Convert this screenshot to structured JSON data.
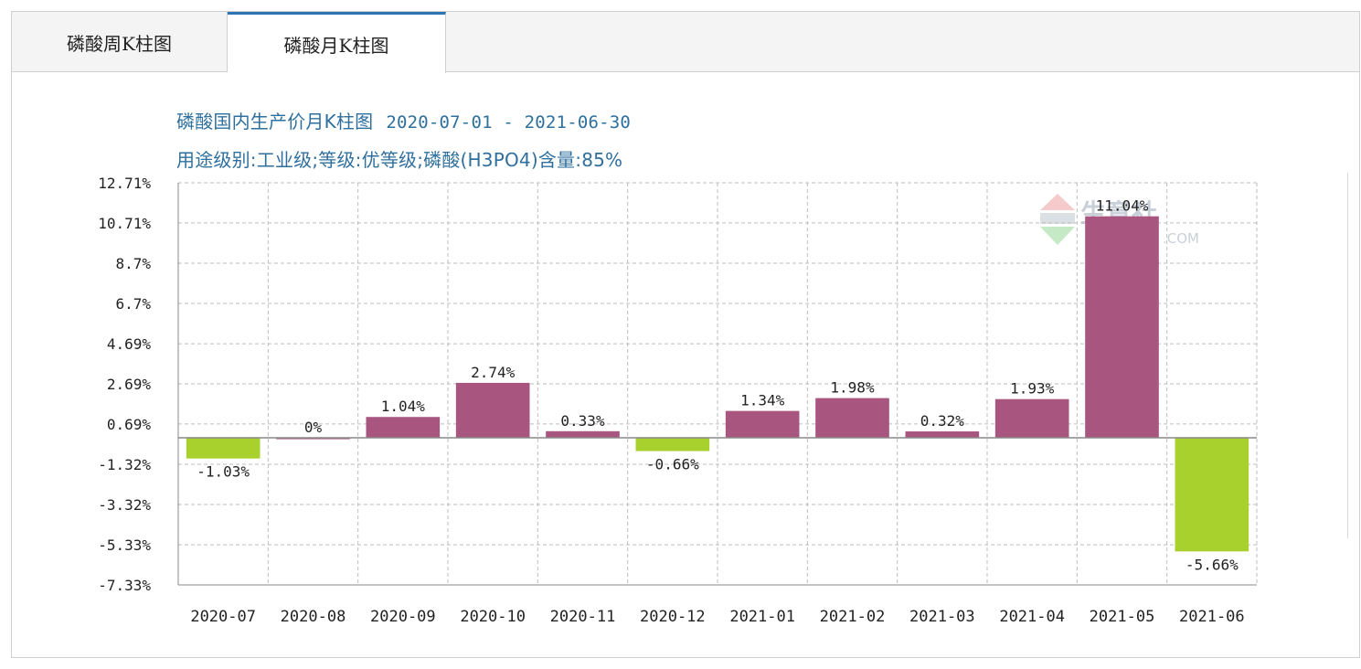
{
  "tabs": [
    {
      "label": "磷酸周K柱图",
      "active": false
    },
    {
      "label": "磷酸月K柱图",
      "active": true
    }
  ],
  "colors": {
    "positive": "#a85580",
    "negative": "#a8d12e",
    "title": "#2f6f9e",
    "grid": "#bdbdbd",
    "tab_active": "#2e74b5"
  },
  "watermark": {
    "text": "生意社",
    "domain": ".COM"
  },
  "chart_data": {
    "type": "bar",
    "title": "磷酸国内生产价月K柱图",
    "date_range": "2020-07-01 - 2021-06-30",
    "subtitle": "用途级别:工业级;等级:优等级;磷酸(H3PO4)含量:85%",
    "categories": [
      "2020-07",
      "2020-08",
      "2020-09",
      "2020-10",
      "2020-11",
      "2020-12",
      "2021-01",
      "2021-02",
      "2021-03",
      "2021-04",
      "2021-05",
      "2021-06"
    ],
    "values": [
      -1.03,
      0,
      1.04,
      2.74,
      0.33,
      -0.66,
      1.34,
      1.98,
      0.32,
      1.93,
      11.04,
      -5.66
    ],
    "value_labels": [
      "-1.03%",
      "0%",
      "1.04%",
      "2.74%",
      "0.33%",
      "-0.66%",
      "1.34%",
      "1.98%",
      "0.32%",
      "1.93%",
      "11.04%",
      "-5.66%"
    ],
    "y_ticks": [
      12.71,
      10.71,
      8.7,
      6.7,
      4.69,
      2.69,
      0.69,
      -1.32,
      -3.32,
      -5.33,
      -7.33
    ],
    "y_tick_labels": [
      "12.71%",
      "10.71%",
      "8.7%",
      "6.7%",
      "4.69%",
      "2.69%",
      "0.69%",
      "-1.32%",
      "-3.32%",
      "-5.33%",
      "-7.33%"
    ],
    "ylim": [
      -7.33,
      12.71
    ],
    "grid": true,
    "legend": "none"
  }
}
